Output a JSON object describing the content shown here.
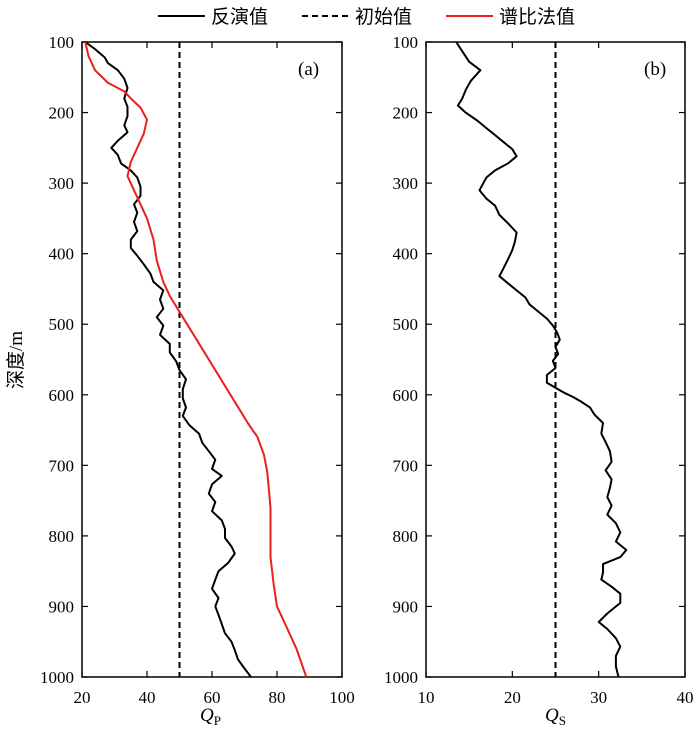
{
  "legend": {
    "inversion_label": "反演值",
    "initial_label": "初始值",
    "spectral_label": "谱比法值"
  },
  "y_axis_label": "深度/m",
  "chart_data": [
    {
      "type": "line",
      "panel_label": "(a)",
      "xlabel_main": "Q",
      "xlabel_sub": "P",
      "ylabel": "深度/m",
      "xlim": [
        20,
        100
      ],
      "ylim": [
        100,
        1000
      ],
      "y_inverted": true,
      "x_ticks": [
        20,
        40,
        60,
        80,
        100
      ],
      "y_ticks": [
        100,
        200,
        300,
        400,
        500,
        600,
        700,
        800,
        900,
        1000
      ],
      "series": [
        {
          "name": "反演值",
          "style": "solid",
          "color": "#000000",
          "points": [
            [
              21,
              100
            ],
            [
              24,
              110
            ],
            [
              27,
              122
            ],
            [
              28,
              130
            ],
            [
              31,
              140
            ],
            [
              33,
              152
            ],
            [
              34,
              165
            ],
            [
              33,
              180
            ],
            [
              34,
              192
            ],
            [
              34,
              205
            ],
            [
              33,
              218
            ],
            [
              34,
              228
            ],
            [
              31,
              240
            ],
            [
              29,
              250
            ],
            [
              31,
              260
            ],
            [
              32,
              272
            ],
            [
              35,
              282
            ],
            [
              37,
              292
            ],
            [
              38,
              305
            ],
            [
              38,
              318
            ],
            [
              36,
              330
            ],
            [
              37,
              342
            ],
            [
              36,
              355
            ],
            [
              37,
              368
            ],
            [
              35,
              380
            ],
            [
              35,
              392
            ],
            [
              37,
              403
            ],
            [
              39,
              415
            ],
            [
              41,
              428
            ],
            [
              42,
              440
            ],
            [
              45,
              452
            ],
            [
              44,
              465
            ],
            [
              45,
              478
            ],
            [
              43,
              490
            ],
            [
              45,
              502
            ],
            [
              44,
              515
            ],
            [
              47,
              528
            ],
            [
              47,
              540
            ],
            [
              49,
              553
            ],
            [
              50,
              565
            ],
            [
              52,
              578
            ],
            [
              51,
              592
            ],
            [
              51,
              605
            ],
            [
              52,
              618
            ],
            [
              51,
              630
            ],
            [
              53,
              643
            ],
            [
              56,
              655
            ],
            [
              57,
              668
            ],
            [
              59,
              680
            ],
            [
              61,
              692
            ],
            [
              60,
              705
            ],
            [
              63,
              715
            ],
            [
              60,
              727
            ],
            [
              59,
              740
            ],
            [
              61,
              752
            ],
            [
              60,
              765
            ],
            [
              63,
              778
            ],
            [
              64,
              790
            ],
            [
              64,
              803
            ],
            [
              66,
              815
            ],
            [
              67,
              825
            ],
            [
              65,
              838
            ],
            [
              62,
              850
            ],
            [
              61,
              862
            ],
            [
              60,
              875
            ],
            [
              62,
              888
            ],
            [
              61,
              900
            ],
            [
              62,
              912
            ],
            [
              63,
              925
            ],
            [
              64,
              938
            ],
            [
              66,
              950
            ],
            [
              67,
              962
            ],
            [
              68,
              975
            ],
            [
              70,
              988
            ],
            [
              72,
              1000
            ]
          ]
        },
        {
          "name": "初始值",
          "style": "dashed",
          "color": "#000000",
          "points": [
            [
              50,
              100
            ],
            [
              50,
              1000
            ]
          ]
        },
        {
          "name": "谱比法值",
          "style": "solid",
          "color": "#e8201e",
          "points": [
            [
              21,
              100
            ],
            [
              22,
              120
            ],
            [
              24,
              140
            ],
            [
              28,
              158
            ],
            [
              33,
              170
            ],
            [
              35,
              180
            ],
            [
              38,
              193
            ],
            [
              40,
              210
            ],
            [
              39,
              230
            ],
            [
              37,
              250
            ],
            [
              35,
              270
            ],
            [
              34,
              290
            ],
            [
              36,
              310
            ],
            [
              38,
              330
            ],
            [
              40,
              350
            ],
            [
              42,
              380
            ],
            [
              43,
              410
            ],
            [
              45,
              440
            ],
            [
              47,
              460
            ],
            [
              51,
              490
            ],
            [
              55,
              520
            ],
            [
              59,
              550
            ],
            [
              63,
              580
            ],
            [
              67,
              610
            ],
            [
              71,
              640
            ],
            [
              74,
              660
            ],
            [
              76,
              685
            ],
            [
              77,
              710
            ],
            [
              78,
              760
            ],
            [
              78,
              790
            ],
            [
              78,
              830
            ],
            [
              79,
              870
            ],
            [
              80,
              900
            ],
            [
              83,
              930
            ],
            [
              86,
              960
            ],
            [
              89,
              1000
            ]
          ]
        }
      ]
    },
    {
      "type": "line",
      "panel_label": "(b)",
      "xlabel_main": "Q",
      "xlabel_sub": "S",
      "xlim": [
        10,
        40
      ],
      "ylim": [
        100,
        1000
      ],
      "y_inverted": true,
      "x_ticks": [
        10,
        20,
        30,
        40
      ],
      "y_ticks": [
        100,
        200,
        300,
        400,
        500,
        600,
        700,
        800,
        900,
        1000
      ],
      "series": [
        {
          "name": "反演值",
          "style": "solid",
          "color": "#000000",
          "points": [
            [
              13.5,
              100
            ],
            [
              14.3,
              115
            ],
            [
              15.0,
              128
            ],
            [
              16.3,
              140
            ],
            [
              15.2,
              155
            ],
            [
              14.6,
              168
            ],
            [
              14.2,
              180
            ],
            [
              13.7,
              190
            ],
            [
              14.6,
              200
            ],
            [
              16.0,
              212
            ],
            [
              17.0,
              222
            ],
            [
              18.0,
              232
            ],
            [
              19.0,
              242
            ],
            [
              20.0,
              252
            ],
            [
              20.5,
              262
            ],
            [
              19.5,
              272
            ],
            [
              18.0,
              282
            ],
            [
              17.0,
              292
            ],
            [
              16.2,
              310
            ],
            [
              17.0,
              322
            ],
            [
              18.0,
              332
            ],
            [
              18.5,
              345
            ],
            [
              19.5,
              357
            ],
            [
              20.5,
              370
            ],
            [
              20.3,
              383
            ],
            [
              20.0,
              395
            ],
            [
              19.5,
              408
            ],
            [
              19.0,
              420
            ],
            [
              18.5,
              432
            ],
            [
              19.5,
              442
            ],
            [
              20.5,
              452
            ],
            [
              21.5,
              462
            ],
            [
              22.0,
              472
            ],
            [
              23.0,
              482
            ],
            [
              24.0,
              492
            ],
            [
              24.7,
              502
            ],
            [
              25.2,
              512
            ],
            [
              25.5,
              522
            ],
            [
              25.0,
              532
            ],
            [
              25.3,
              542
            ],
            [
              24.7,
              552
            ],
            [
              25.0,
              562
            ],
            [
              24.0,
              572
            ],
            [
              24.0,
              583
            ],
            [
              25.0,
              590
            ],
            [
              26.0,
              597
            ],
            [
              27.0,
              603
            ],
            [
              28.0,
              610
            ],
            [
              29.0,
              618
            ],
            [
              29.5,
              628
            ],
            [
              30.5,
              640
            ],
            [
              30.3,
              655
            ],
            [
              30.8,
              667
            ],
            [
              31.3,
              680
            ],
            [
              31.5,
              695
            ],
            [
              30.8,
              707
            ],
            [
              31.5,
              720
            ],
            [
              31.3,
              732
            ],
            [
              31.0,
              745
            ],
            [
              31.5,
              757
            ],
            [
              31.0,
              770
            ],
            [
              32.0,
              782
            ],
            [
              32.5,
              795
            ],
            [
              32.0,
              808
            ],
            [
              33.2,
              820
            ],
            [
              32.5,
              830
            ],
            [
              30.5,
              840
            ],
            [
              30.5,
              852
            ],
            [
              30.3,
              862
            ],
            [
              31.5,
              872
            ],
            [
              32.5,
              882
            ],
            [
              32.5,
              895
            ],
            [
              31.0,
              910
            ],
            [
              30.0,
              922
            ],
            [
              31.0,
              932
            ],
            [
              32.0,
              945
            ],
            [
              32.5,
              957
            ],
            [
              32.0,
              970
            ],
            [
              32.0,
              985
            ],
            [
              32.3,
              1000
            ]
          ]
        },
        {
          "name": "初始值",
          "style": "dashed",
          "color": "#000000",
          "points": [
            [
              25,
              100
            ],
            [
              25,
              1000
            ]
          ]
        }
      ]
    }
  ]
}
